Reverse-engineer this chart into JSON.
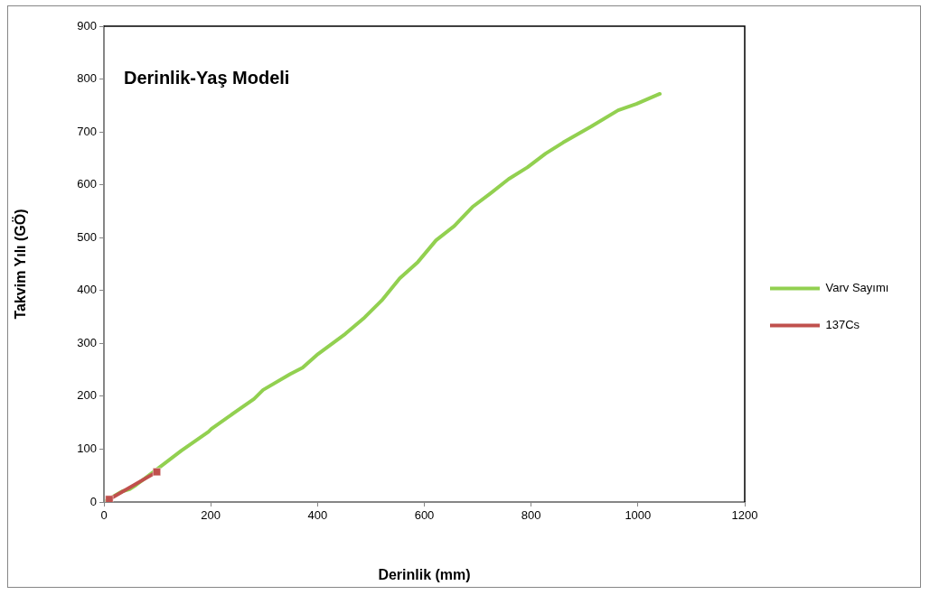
{
  "chart_data": {
    "type": "line",
    "title": "Derinlik-Yaş Modeli",
    "xlabel": "Derinlik (mm)",
    "ylabel": "Takvim Yılı (GÖ)",
    "xlim": [
      0,
      1200
    ],
    "xticks": [
      0,
      200,
      400,
      600,
      800,
      1000,
      1200
    ],
    "ylim": [
      0,
      900
    ],
    "yticks": [
      0,
      100,
      200,
      300,
      400,
      500,
      600,
      700,
      800,
      900
    ],
    "grid": false,
    "legend": "right",
    "series": [
      {
        "name": "Varv Sayımı",
        "color": "#92d050",
        "marker": "none",
        "x": [
          5,
          34,
          48,
          60,
          94,
          145,
          196,
          201,
          247,
          281,
          298,
          349,
          372,
          401,
          452,
          486,
          491,
          520,
          554,
          588,
          622,
          656,
          690,
          724,
          758,
          793,
          827,
          860,
          912,
          963,
          997,
          1041
        ],
        "values": [
          3,
          20,
          24,
          32,
          58,
          97,
          133,
          138,
          171,
          195,
          212,
          242,
          254,
          280,
          318,
          347,
          352,
          381,
          423,
          454,
          495,
          522,
          558,
          584,
          611,
          633,
          659,
          680,
          710,
          741,
          753,
          772
        ]
      },
      {
        "name": "137Cs",
        "color": "#c0504d",
        "marker": "square",
        "x": [
          10,
          99
        ],
        "values": [
          5,
          57
        ]
      }
    ]
  }
}
